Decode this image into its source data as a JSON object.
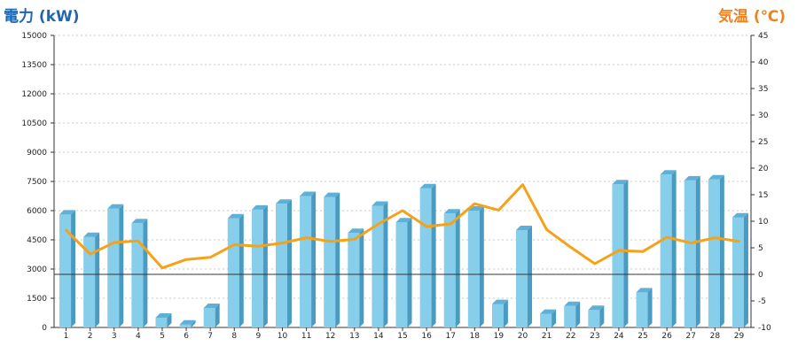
{
  "chart_data": {
    "type": "bar+line",
    "title": "",
    "left_axis": {
      "label": "電力 (kW)",
      "ylim": [
        0,
        15000
      ],
      "ticks": [
        "0",
        "1500",
        "3000",
        "4500",
        "6000",
        "7500",
        "9000",
        "10500",
        "12000",
        "13500",
        "15000"
      ],
      "color": "#1e67b0"
    },
    "right_axis": {
      "label": "気温 (℃)",
      "ylim": [
        -10,
        45
      ],
      "ticks": [
        "-10",
        "-5",
        "0",
        "5",
        "10",
        "15",
        "20",
        "25",
        "30",
        "35",
        "40",
        "45"
      ],
      "color": "#f0821c"
    },
    "categories": [
      "1",
      "2",
      "3",
      "4",
      "5",
      "6",
      "7",
      "8",
      "9",
      "10",
      "11",
      "12",
      "13",
      "14",
      "15",
      "16",
      "17",
      "18",
      "19",
      "20",
      "21",
      "22",
      "23",
      "24",
      "25",
      "26",
      "27",
      "28",
      "29"
    ],
    "series": [
      {
        "kind": "bar",
        "axis": "left",
        "color": "#87ceeb",
        "values": [
          5800,
          4650,
          6100,
          5350,
          500,
          150,
          1000,
          5600,
          6050,
          6350,
          6750,
          6700,
          4850,
          6250,
          5400,
          7150,
          5850,
          6000,
          1200,
          5000,
          700,
          1100,
          900,
          7350,
          1800,
          7850,
          7550,
          7600,
          5650
        ]
      },
      {
        "kind": "line",
        "axis": "right",
        "color": "#f5a219",
        "values": [
          8.3,
          3.8,
          6.0,
          6.3,
          1.2,
          2.8,
          3.2,
          5.6,
          5.3,
          5.9,
          6.9,
          6.2,
          6.6,
          9.5,
          12.0,
          9.0,
          9.5,
          13.3,
          12.1,
          16.9,
          8.4,
          5.1,
          2.0,
          4.5,
          4.3,
          7.0,
          5.9,
          6.9,
          6.2
        ]
      }
    ],
    "grid": true
  }
}
